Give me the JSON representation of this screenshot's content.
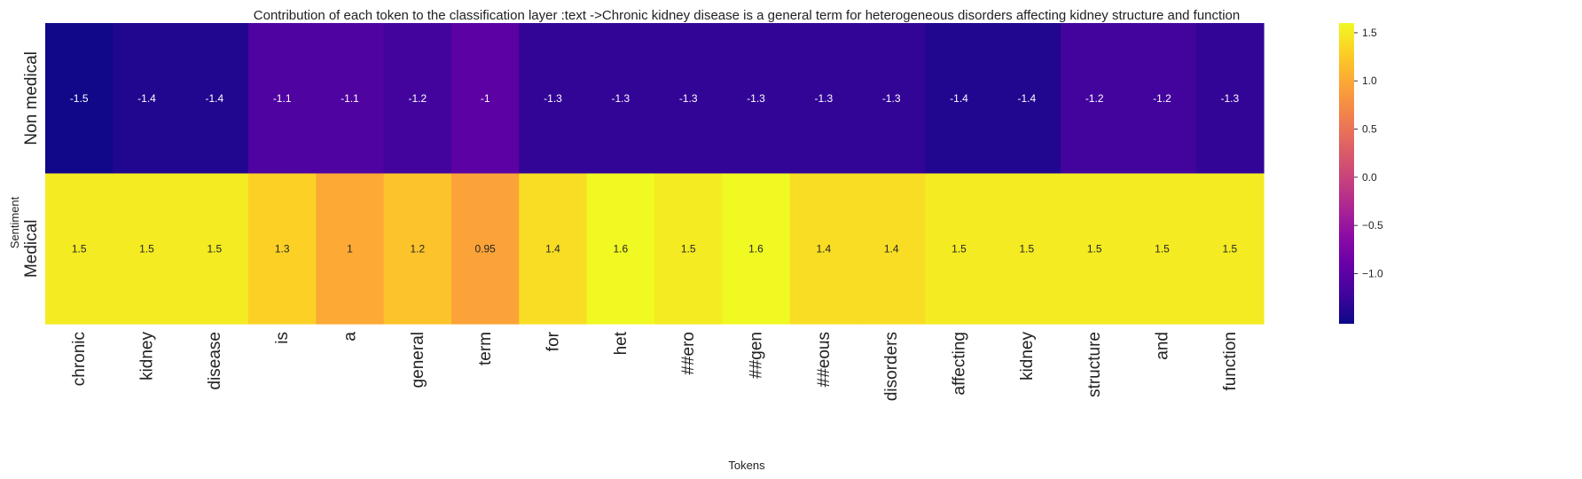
{
  "chart_data": {
    "type": "heatmap",
    "title": "Contribution of each token to the classification layer :text ->Chronic kidney disease is a general term for heterogeneous disorders affecting kidney structure and function",
    "xlabel": "Tokens",
    "ylabel": "Sentiment",
    "columns": [
      "chronic",
      "kidney",
      "disease",
      "is",
      "a",
      "general",
      "term",
      "for",
      "het",
      "##ero",
      "##gen",
      "##eous",
      "disorders",
      "affecting",
      "kidney",
      "structure",
      "and",
      "function"
    ],
    "rows": [
      "Non medical",
      "Medical"
    ],
    "values": [
      [
        -1.5,
        -1.4,
        -1.4,
        -1.1,
        -1.1,
        -1.2,
        -1,
        -1.3,
        -1.3,
        -1.3,
        -1.3,
        -1.3,
        -1.3,
        -1.4,
        -1.4,
        -1.2,
        -1.2,
        -1.3
      ],
      [
        1.5,
        1.5,
        1.5,
        1.3,
        1,
        1.2,
        0.95,
        1.4,
        1.6,
        1.5,
        1.6,
        1.4,
        1.4,
        1.5,
        1.5,
        1.5,
        1.5,
        1.5
      ]
    ],
    "labels": [
      [
        "-1.5",
        "-1.4",
        "-1.4",
        "-1.1",
        "-1.1",
        "-1.2",
        "-1",
        "-1.3",
        "-1.3",
        "-1.3",
        "-1.3",
        "-1.3",
        "-1.3",
        "-1.4",
        "-1.4",
        "-1.2",
        "-1.2",
        "-1.3"
      ],
      [
        "1.5",
        "1.5",
        "1.5",
        "1.3",
        "1",
        "1.2",
        "0.95",
        "1.4",
        "1.6",
        "1.5",
        "1.6",
        "1.4",
        "1.4",
        "1.5",
        "1.5",
        "1.5",
        "1.5",
        "1.5"
      ]
    ],
    "colormap": "plasma",
    "vmin": -1.52,
    "vmax": 1.6,
    "colorbar_ticks": [
      -1.0,
      -0.5,
      0.0,
      0.5,
      1.0,
      1.5
    ],
    "colorbar_tick_labels": [
      "−1.0",
      "−0.5",
      "0.0",
      "0.5",
      "1.0",
      "1.5"
    ]
  }
}
